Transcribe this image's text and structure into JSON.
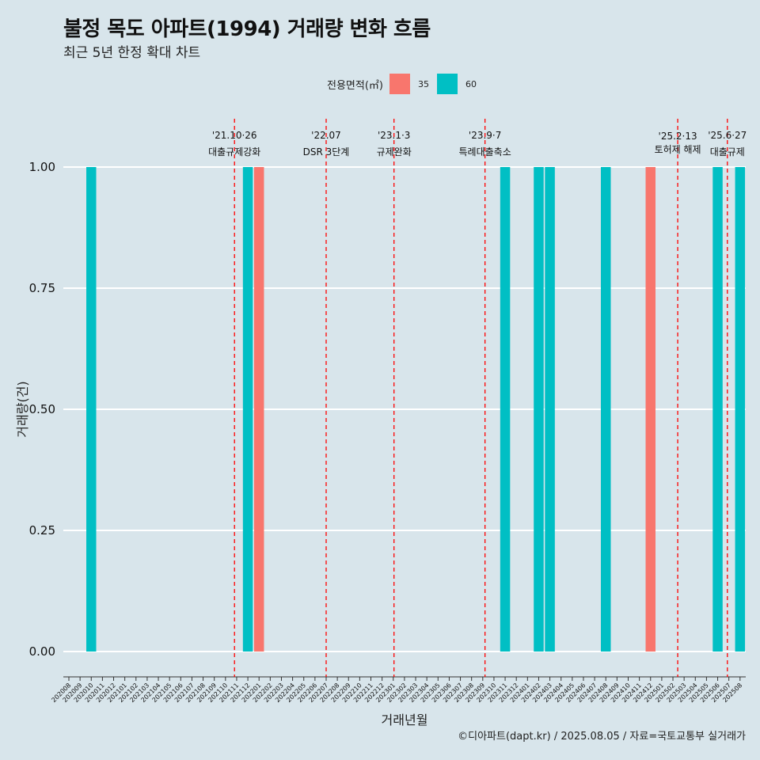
{
  "title": "불정 목도 아파트(1994) 거래량 변화 흐름",
  "subtitle": "최근 5년 한정 확대 차트",
  "legend_title": "전용면적(㎡)",
  "caption": "©디아파트(dapt.kr) / 2025.08.05 / 자료=국토교통부 실거래가",
  "colors": {
    "35": "#f8766d",
    "60": "#00bfc4",
    "vline": "#ff0000",
    "background": "#d8e5eb",
    "grid": "#ffffff"
  },
  "chart_data": {
    "type": "bar",
    "xlabel": "거래년월",
    "ylabel": "거래량(건)",
    "ylim": [
      0,
      1
    ],
    "y_ticks": [
      "0.00",
      "0.25",
      "0.50",
      "0.75",
      "1.00"
    ],
    "categories": [
      "202008",
      "202009",
      "202010",
      "202011",
      "202012",
      "202101",
      "202102",
      "202103",
      "202104",
      "202105",
      "202106",
      "202107",
      "202108",
      "202109",
      "202110",
      "202111",
      "202112",
      "202201",
      "202202",
      "202203",
      "202204",
      "202205",
      "202206",
      "202207",
      "202208",
      "202209",
      "202210",
      "202211",
      "202212",
      "202301",
      "202302",
      "202303",
      "202304",
      "202305",
      "202306",
      "202307",
      "202308",
      "202309",
      "202310",
      "202311",
      "202312",
      "202401",
      "202402",
      "202403",
      "202404",
      "202405",
      "202406",
      "202407",
      "202408",
      "202409",
      "202410",
      "202411",
      "202412",
      "202501",
      "202502",
      "202503",
      "202504",
      "202505",
      "202506",
      "202507",
      "202508"
    ],
    "series": [
      {
        "name": "35",
        "values": [
          {
            "x": "202201",
            "y": 1
          },
          {
            "x": "202412",
            "y": 1
          }
        ]
      },
      {
        "name": "60",
        "values": [
          {
            "x": "202010",
            "y": 1
          },
          {
            "x": "202112",
            "y": 1
          },
          {
            "x": "202311",
            "y": 1
          },
          {
            "x": "202402",
            "y": 1
          },
          {
            "x": "202403",
            "y": 1
          },
          {
            "x": "202408",
            "y": 1
          },
          {
            "x": "202506",
            "y": 1
          },
          {
            "x": "202508",
            "y": 1
          }
        ]
      }
    ],
    "annotations": [
      {
        "date": "2021-10-26",
        "line1": "'21.10·26",
        "line2": "대출규제강화"
      },
      {
        "date": "2022-07-01",
        "line1": "'22.07",
        "line2": "DSR 3단계"
      },
      {
        "date": "2023-01-03",
        "line1": "'23.1·3",
        "line2": "규제완화"
      },
      {
        "date": "2023-09-07",
        "line1": "'23.9·7",
        "line2": "특례대출축소"
      },
      {
        "date": "2025-02-13",
        "line1": "'25.2·13",
        "line2": "토허제 해제"
      },
      {
        "date": "2025-06-27",
        "line1": "'25.6·27",
        "line2": "대출규제"
      }
    ]
  }
}
